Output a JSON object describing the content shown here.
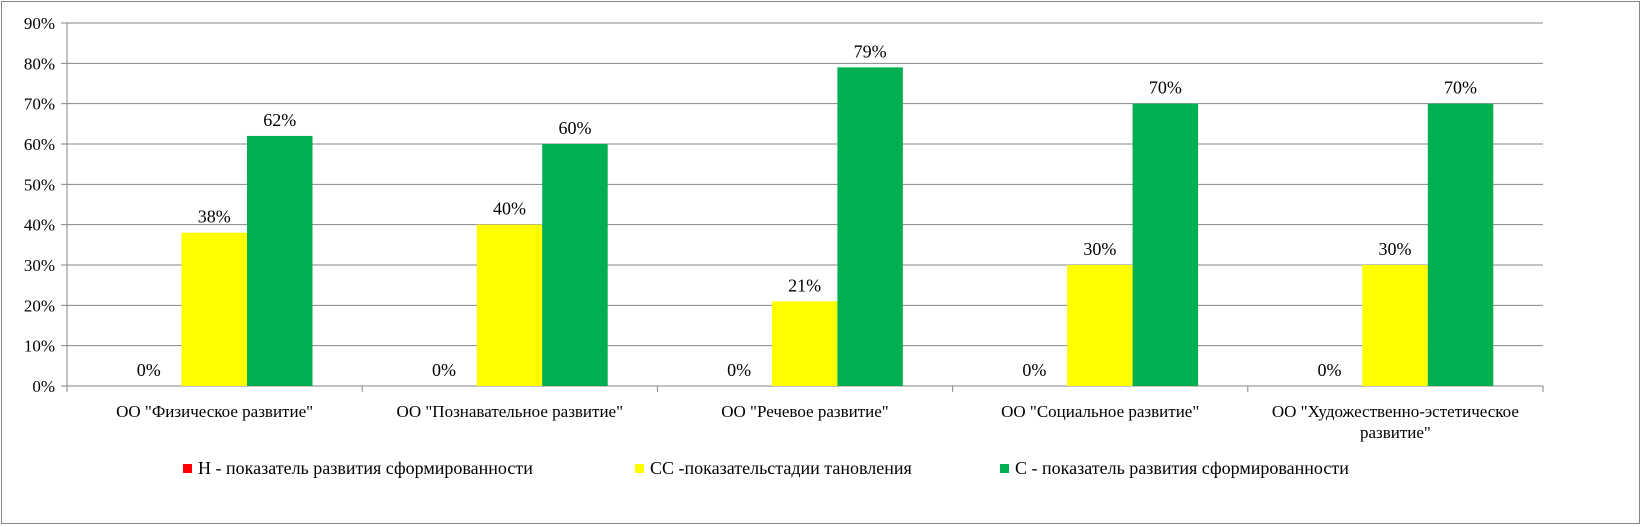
{
  "chart_data": {
    "type": "bar",
    "categories": [
      "ОО \"Физическое развитие\"",
      "ОО \"Познавательное развитие\"",
      "ОО \"Речевое развитие\"",
      "ОО \"Социальное развитие\"",
      "ОО \"Художественно-эстетическое развитие\""
    ],
    "series": [
      {
        "name": "Н - показатель развития сформированности",
        "color": "#ff0000",
        "values": [
          0,
          0,
          0,
          0,
          0
        ]
      },
      {
        "name": "СС -показательстадии тановления",
        "color": "#ffff00",
        "values": [
          38,
          40,
          21,
          30,
          30
        ]
      },
      {
        "name": "С - показатель развития сформированности",
        "color": "#00b050",
        "values": [
          62,
          60,
          79,
          70,
          70
        ]
      }
    ],
    "ylim": [
      0,
      90
    ],
    "yticks": [
      "0%",
      "10%",
      "20%",
      "30%",
      "40%",
      "50%",
      "60%",
      "70%",
      "80%",
      "90%"
    ],
    "value_suffix": "%",
    "grid": true,
    "legend_position": "bottom"
  }
}
